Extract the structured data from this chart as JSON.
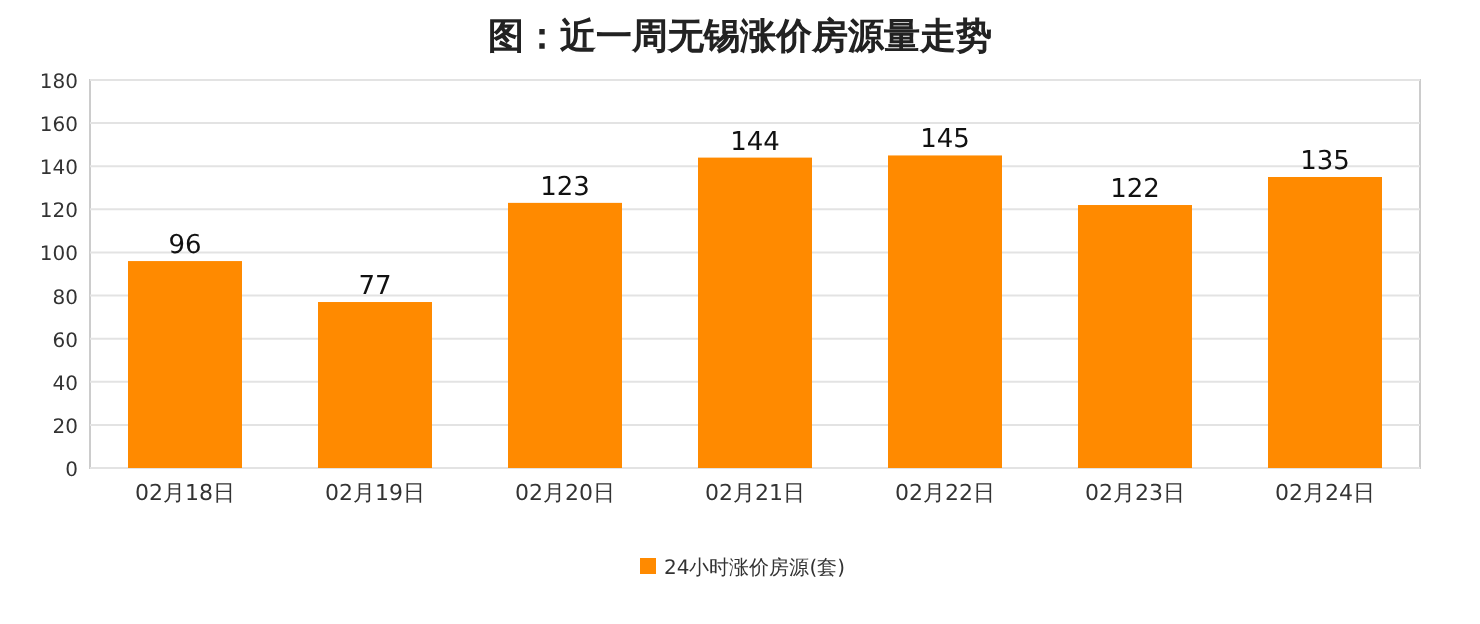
{
  "chart_data": {
    "type": "bar",
    "title": "图：近一周无锡涨价房源量走势",
    "categories": [
      "02月18日",
      "02月19日",
      "02月20日",
      "02月21日",
      "02月22日",
      "02月23日",
      "02月24日"
    ],
    "series": [
      {
        "name": "24小时涨价房源(套)",
        "color": "#ff8a00",
        "values": [
          96,
          77,
          123,
          144,
          145,
          122,
          135
        ]
      }
    ],
    "ylim": [
      0,
      180
    ],
    "yticks": [
      0,
      20,
      40,
      60,
      80,
      100,
      120,
      140,
      160,
      180
    ],
    "grid": "y",
    "legend": "bottom",
    "data_labels": true
  }
}
